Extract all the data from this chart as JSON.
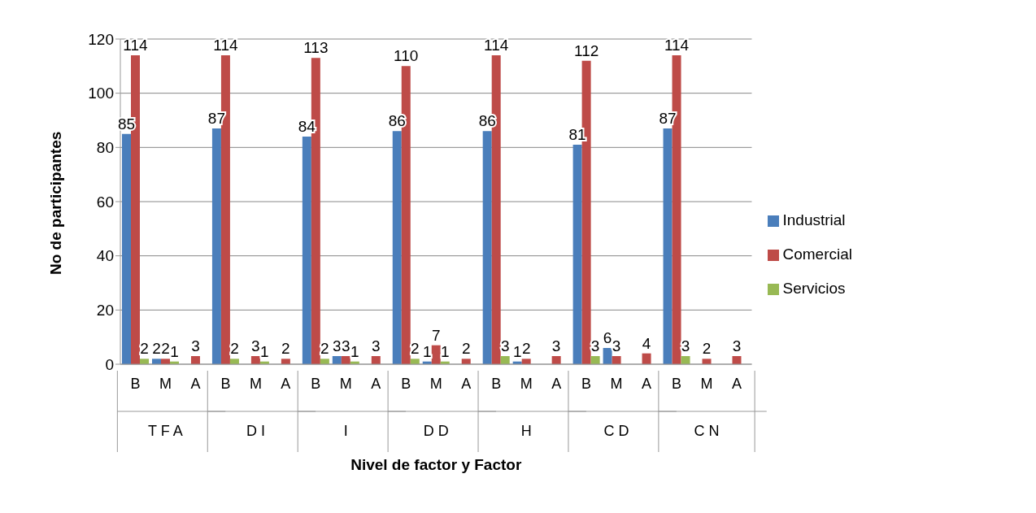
{
  "chart_data": {
    "type": "bar",
    "xlabel": "Nivel de factor y Factor",
    "ylabel": "No de participantes",
    "categories": [
      "B",
      "M",
      "A",
      "B",
      "M",
      "A",
      "B",
      "M",
      "A",
      "B",
      "M",
      "A",
      "B",
      "M",
      "A",
      "B",
      "M",
      "A",
      "B",
      "M",
      "A"
    ],
    "annotations": [
      "T F A",
      "D I",
      "I",
      "D D",
      "H",
      "C D",
      "C N"
    ],
    "series": [
      {
        "name": "Industrial",
        "color": "#4a7ebb",
        "values": [
          85,
          2,
          null,
          87,
          null,
          null,
          84,
          3,
          null,
          86,
          1,
          null,
          86,
          1,
          null,
          81,
          6,
          null,
          87,
          null,
          null
        ]
      },
      {
        "name": "Comercial",
        "color": "#be4b48",
        "values": [
          114,
          2,
          3,
          114,
          3,
          2,
          113,
          3,
          3,
          110,
          7,
          2,
          114,
          2,
          3,
          112,
          3,
          4,
          114,
          2,
          3
        ]
      },
      {
        "name": "Servicios",
        "color": "#98b954",
        "values": [
          2,
          1,
          null,
          2,
          1,
          null,
          2,
          1,
          null,
          2,
          1,
          null,
          3,
          null,
          null,
          3,
          null,
          null,
          3,
          null,
          null
        ]
      }
    ],
    "ylim": [
      0,
      120
    ],
    "yticks": [
      0,
      20,
      40,
      60,
      80,
      100,
      120
    ],
    "grid": "y",
    "legend": "right",
    "data_labels": true
  }
}
